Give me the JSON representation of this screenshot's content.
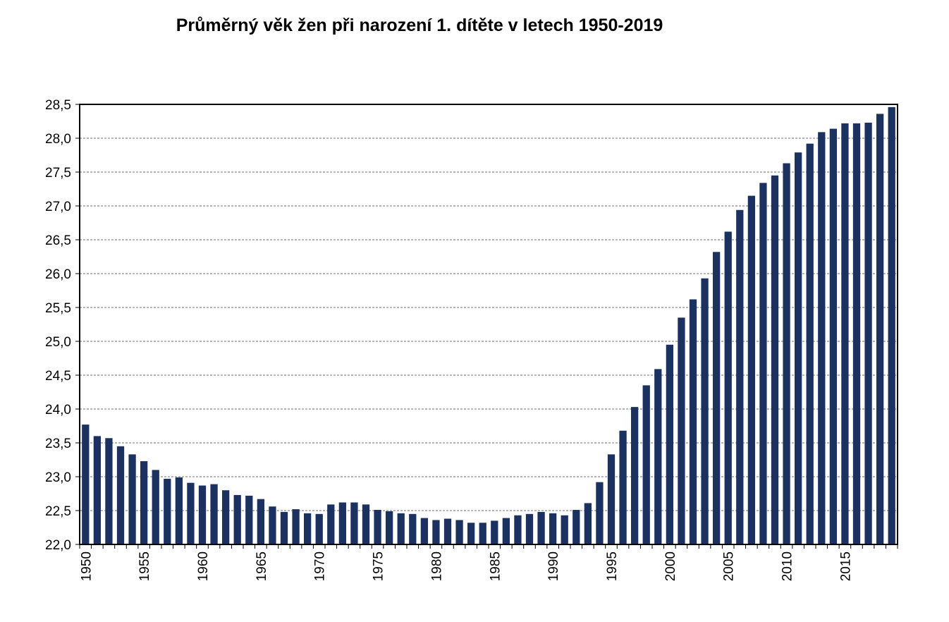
{
  "chart_data": {
    "type": "bar",
    "title": "Průměrný věk žen při narození 1. dítěte v letech 1950-2019",
    "xlabel": "",
    "ylabel": "",
    "ylim": [
      22.0,
      28.5
    ],
    "y_ticks": [
      "22,0",
      "22,5",
      "23,0",
      "23,5",
      "24,0",
      "24,5",
      "25,0",
      "25,5",
      "26,0",
      "26,5",
      "27,0",
      "27,5",
      "28,0",
      "28,5"
    ],
    "x_tick_labels": [
      "1950",
      "1955",
      "1960",
      "1965",
      "1970",
      "1975",
      "1980",
      "1985",
      "1990",
      "1995",
      "2000",
      "2005",
      "2010",
      "2015"
    ],
    "grid": true,
    "bar_color": "#1b3160",
    "categories": [
      1950,
      1951,
      1952,
      1953,
      1954,
      1955,
      1956,
      1957,
      1958,
      1959,
      1960,
      1961,
      1962,
      1963,
      1964,
      1965,
      1966,
      1967,
      1968,
      1969,
      1970,
      1971,
      1972,
      1973,
      1974,
      1975,
      1976,
      1977,
      1978,
      1979,
      1980,
      1981,
      1982,
      1983,
      1984,
      1985,
      1986,
      1987,
      1988,
      1989,
      1990,
      1991,
      1992,
      1993,
      1994,
      1995,
      1996,
      1997,
      1998,
      1999,
      2000,
      2001,
      2002,
      2003,
      2004,
      2005,
      2006,
      2007,
      2008,
      2009,
      2010,
      2011,
      2012,
      2013,
      2014,
      2015,
      2016,
      2017,
      2018,
      2019
    ],
    "values": [
      23.77,
      23.6,
      23.57,
      23.45,
      23.33,
      23.23,
      23.1,
      22.97,
      22.99,
      22.91,
      22.87,
      22.89,
      22.8,
      22.73,
      22.72,
      22.67,
      22.56,
      22.48,
      22.52,
      22.46,
      22.45,
      22.59,
      22.62,
      22.62,
      22.59,
      22.51,
      22.49,
      22.46,
      22.45,
      22.39,
      22.36,
      22.38,
      22.36,
      22.32,
      22.32,
      22.35,
      22.39,
      22.43,
      22.45,
      22.48,
      22.46,
      22.43,
      22.51,
      22.61,
      22.92,
      23.33,
      23.68,
      24.03,
      24.35,
      24.59,
      24.95,
      25.35,
      25.62,
      25.93,
      26.32,
      26.62,
      26.94,
      27.15,
      27.34,
      27.45,
      27.63,
      27.79,
      27.92,
      28.09,
      28.14,
      28.22,
      28.22,
      28.23,
      28.36,
      28.46
    ]
  }
}
